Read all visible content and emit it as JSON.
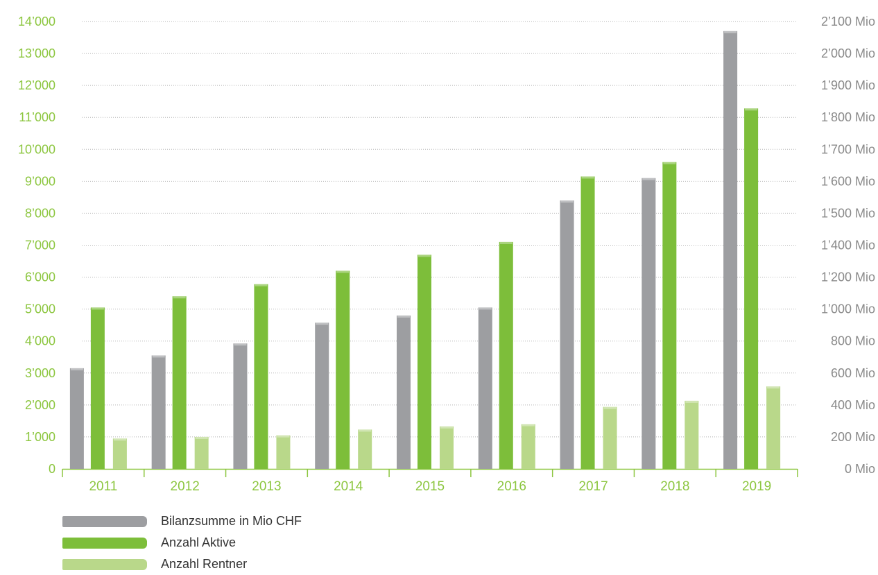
{
  "chart_data": {
    "type": "bar",
    "categories": [
      "2011",
      "2012",
      "2013",
      "2014",
      "2015",
      "2016",
      "2017",
      "2018",
      "2019"
    ],
    "series": [
      {
        "name": "Bilanzsumme in Mio CHF",
        "axis": "right",
        "color": "#9d9ea1",
        "values": [
          630,
          710,
          785,
          915,
          960,
          1010,
          1540,
          1610,
          2070
        ]
      },
      {
        "name": "Anzahl Aktive",
        "axis": "left",
        "color": "#7dbe3a",
        "values": [
          5050,
          5400,
          5780,
          6200,
          6700,
          7100,
          9150,
          9600,
          11280
        ]
      },
      {
        "name": "Anzahl Rentner",
        "axis": "left",
        "color": "#b9d88a",
        "values": [
          950,
          1000,
          1050,
          1230,
          1330,
          1400,
          1940,
          2130,
          2580
        ]
      }
    ],
    "left_axis": {
      "ylim": [
        0,
        14000
      ],
      "tick_labels": [
        "0",
        "1’000",
        "2’000",
        "3’000",
        "4’000",
        "5’000",
        "6’000",
        "7’000",
        "8’000",
        "9’000",
        "10’000",
        "11’000",
        "12’000",
        "13’000",
        "14’000"
      ],
      "tick_values": [
        0,
        1000,
        2000,
        3000,
        4000,
        5000,
        6000,
        7000,
        8000,
        9000,
        10000,
        11000,
        12000,
        13000,
        14000
      ],
      "color": "#8cc63f"
    },
    "right_axis": {
      "tick_labels": [
        "0 Mio",
        "200 Mio",
        "400 Mio",
        "600 Mio",
        "800 Mio",
        "1’000 Mio",
        "1’200 Mio",
        "1’400 Mio",
        "1’500 Mio",
        "1’600 Mio",
        "1’700 Mio",
        "1’800 Mio",
        "1’900 Mio",
        "2’000 Mio",
        "2’100 Mio"
      ],
      "tick_values": [
        0,
        200,
        400,
        600,
        800,
        1000,
        1200,
        1400,
        1500,
        1600,
        1700,
        1800,
        1900,
        2000,
        2100
      ],
      "color": "#8a8a8a"
    },
    "x_tick_color": "#8cc63f",
    "grid": true,
    "legend_position": "bottom-left"
  }
}
